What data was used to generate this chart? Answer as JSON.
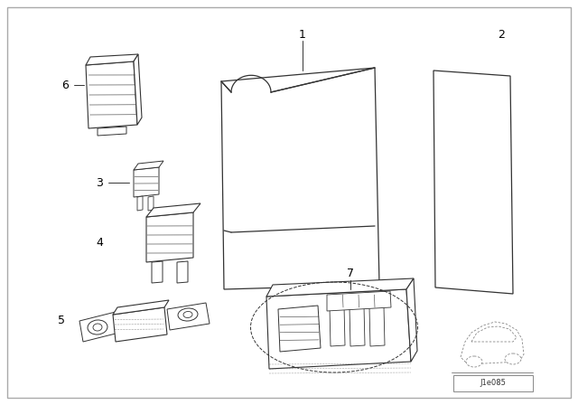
{
  "bg_color": "#ffffff",
  "border_color": "#aaaaaa",
  "line_color": "#333333",
  "diagram_id": "J1e085",
  "fig_w": 6.4,
  "fig_h": 4.48,
  "dpi": 100
}
